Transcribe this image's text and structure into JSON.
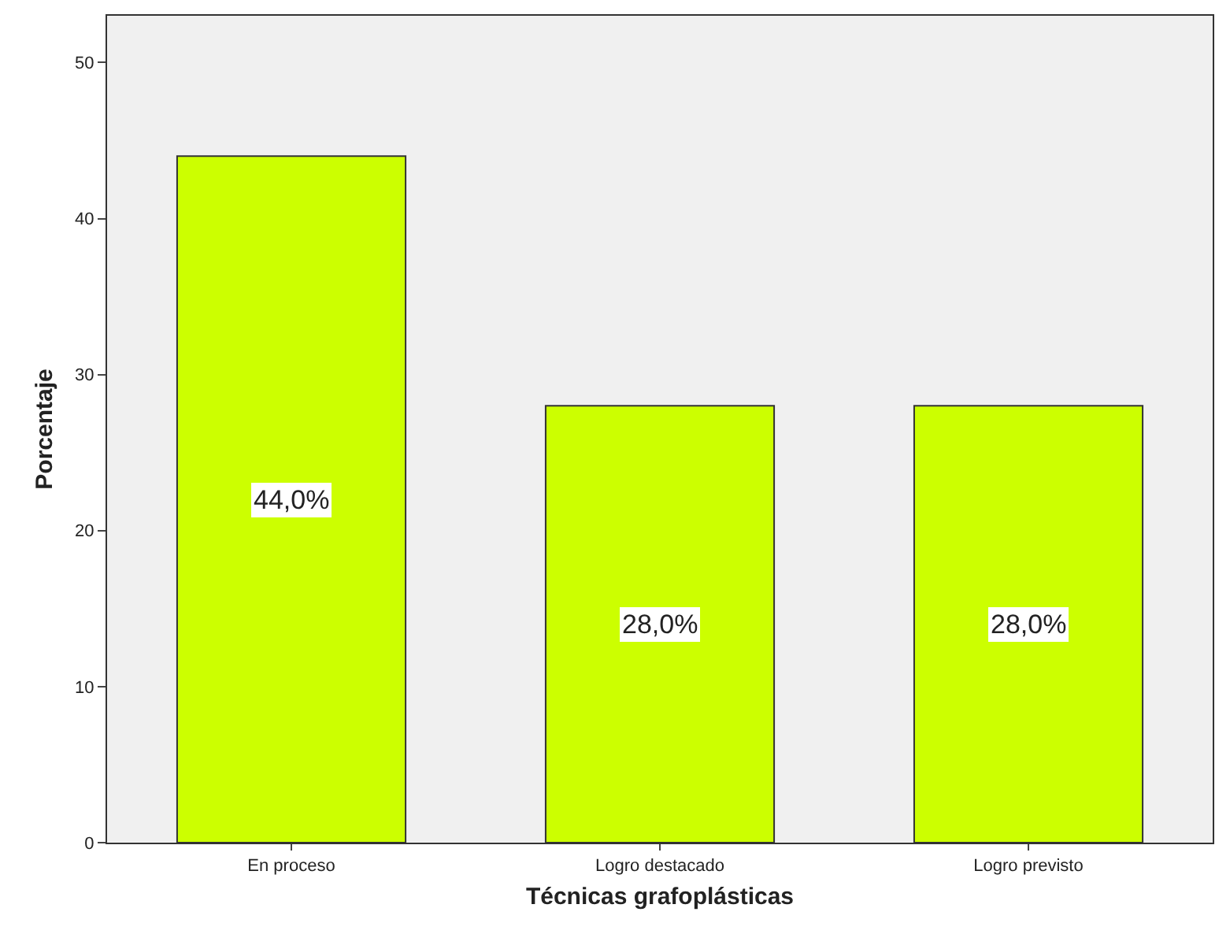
{
  "chart_data": {
    "type": "bar",
    "xlabel": "Técnicas grafoplásticas",
    "ylabel": "Porcentaje",
    "categories": [
      "En proceso",
      "Logro destacado",
      "Logro previsto"
    ],
    "values": [
      44.0,
      28.0,
      28.0
    ],
    "value_labels": [
      "44,0%",
      "28,0%",
      "28,0%"
    ],
    "color": "#ccff00",
    "ylim": [
      0,
      53
    ],
    "yticks": [
      0,
      10,
      20,
      30,
      40,
      50
    ],
    "grid": false
  }
}
